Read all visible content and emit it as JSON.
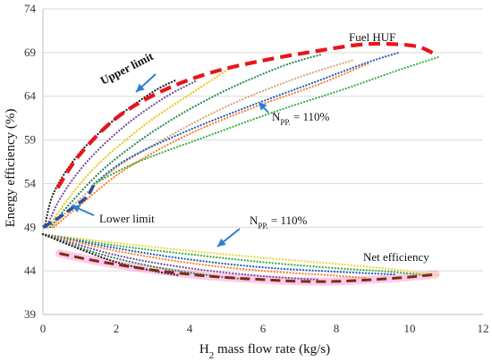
{
  "chart_data": {
    "type": "line",
    "xlabel": "H",
    "xlabel_sub": "2",
    "xlabel_rest": " mass flow rate (kg/s)",
    "ylabel": "Energy efficiency (%)",
    "xlim": [
      0,
      12
    ],
    "ylim": [
      39,
      74
    ],
    "xticks": [
      "0",
      "2",
      "4",
      "6",
      "8",
      "10",
      "12"
    ],
    "yticks": [
      "39",
      "44",
      "49",
      "54",
      "59",
      "64",
      "69",
      "74"
    ],
    "grid": "horizontal",
    "annotations": {
      "fuel_huf": "Fuel HUF",
      "upper_limit": "Upper limit",
      "lower_limit": "Lower limit",
      "net_efficiency": "Net efficiency",
      "npp_upper_n": "N",
      "npp_upper_sub": "PP.",
      "npp_upper_rest": " = 110%",
      "npp_lower_n": "N",
      "npp_lower_sub": "PP.",
      "npp_lower_rest": " = 110%"
    },
    "colors": {
      "upper_limit": "#e8141c",
      "lower_limit_huf": "#2e4fa0",
      "lower_limit_net": "#7a2e0e",
      "net_upper_envelope": "#f0d442",
      "highlight": "#ff66cc",
      "arrow": "#2f7fd0",
      "grid": "#d9d9d9"
    },
    "series_huf": [
      {
        "color": "#222222",
        "points": [
          [
            0.05,
            49
          ],
          [
            0.3,
            53
          ],
          [
            1,
            57.5
          ],
          [
            2,
            61.5
          ],
          [
            3,
            64.5
          ],
          [
            3.6,
            65.8
          ]
        ]
      },
      {
        "color": "#7b4fa0",
        "points": [
          [
            0.1,
            49
          ],
          [
            0.5,
            52.5
          ],
          [
            1.2,
            56.5
          ],
          [
            2.2,
            60.5
          ],
          [
            3.3,
            63.8
          ],
          [
            4.2,
            65.8
          ]
        ]
      },
      {
        "color": "#f0c419",
        "points": [
          [
            0.15,
            49
          ],
          [
            0.7,
            52.3
          ],
          [
            1.5,
            56.2
          ],
          [
            2.8,
            60.8
          ],
          [
            4,
            64.2
          ],
          [
            5.1,
            67.2
          ]
        ]
      },
      {
        "color": "#2e8b57",
        "points": [
          [
            0.2,
            49
          ],
          [
            0.8,
            52
          ],
          [
            1.8,
            56.2
          ],
          [
            3.2,
            60.5
          ],
          [
            4.8,
            64.3
          ],
          [
            6.5,
            67.4
          ],
          [
            7.6,
            68.8
          ]
        ]
      },
      {
        "color": "#d9a679",
        "points": [
          [
            0.25,
            49
          ],
          [
            0.9,
            51.8
          ],
          [
            2,
            55.8
          ],
          [
            3.6,
            59.8
          ],
          [
            5.2,
            63.2
          ],
          [
            7,
            66.2
          ],
          [
            8.5,
            68.2
          ]
        ]
      },
      {
        "color": "#ff7f27",
        "points": [
          [
            0.3,
            49
          ],
          [
            1,
            51.5
          ],
          [
            2.2,
            55.5
          ],
          [
            3.9,
            59.5
          ],
          [
            5.8,
            62.8
          ],
          [
            7.6,
            65.5
          ],
          [
            8.9,
            67.8
          ]
        ]
      },
      {
        "color": "#1f5fbf",
        "points": [
          [
            1.4,
            54
          ],
          [
            2.3,
            56.8
          ],
          [
            3.8,
            59.8
          ],
          [
            5.6,
            62.8
          ],
          [
            7.4,
            65.6
          ],
          [
            8.8,
            67.8
          ],
          [
            9.7,
            69
          ]
        ]
      },
      {
        "color": "#3cb043",
        "points": [
          [
            1.4,
            54
          ],
          [
            2.6,
            56.5
          ],
          [
            4.4,
            59.3
          ],
          [
            6.3,
            62.2
          ],
          [
            8.2,
            64.8
          ],
          [
            9.7,
            67
          ],
          [
            10.8,
            68.5
          ]
        ]
      }
    ],
    "series_net": [
      {
        "color": "#f0d442",
        "points": [
          [
            0,
            48.2
          ],
          [
            2,
            47.2
          ],
          [
            4,
            46.3
          ],
          [
            6,
            45.5
          ],
          [
            8,
            44.8
          ],
          [
            9.5,
            44.2
          ],
          [
            10.8,
            43.5
          ]
        ]
      },
      {
        "color": "#3cb043",
        "points": [
          [
            0,
            48.2
          ],
          [
            2,
            46.9
          ],
          [
            4,
            45.9
          ],
          [
            6,
            45
          ],
          [
            8,
            44.3
          ],
          [
            9.5,
            43.9
          ],
          [
            10.6,
            43.4
          ]
        ]
      },
      {
        "color": "#1f5fbf",
        "points": [
          [
            0,
            48.2
          ],
          [
            2,
            46.6
          ],
          [
            4,
            45.3
          ],
          [
            6,
            44.4
          ],
          [
            8,
            43.9
          ],
          [
            9.6,
            43.6
          ]
        ]
      },
      {
        "color": "#ff7f27",
        "points": [
          [
            0,
            48.2
          ],
          [
            2,
            46.3
          ],
          [
            4,
            44.9
          ],
          [
            6,
            44
          ],
          [
            7.8,
            43.5
          ],
          [
            8.8,
            43.2
          ]
        ]
      },
      {
        "color": "#7b4fa0",
        "points": [
          [
            0,
            48.2
          ],
          [
            2,
            45.8
          ],
          [
            4,
            44.3
          ],
          [
            6,
            43.4
          ],
          [
            7.5,
            43
          ]
        ]
      },
      {
        "color": "#2e8b57",
        "points": [
          [
            0,
            48.2
          ],
          [
            1.5,
            46
          ],
          [
            3,
            44.5
          ],
          [
            4.5,
            43.5
          ],
          [
            5.6,
            43
          ]
        ]
      },
      {
        "color": "#222222",
        "points": [
          [
            0,
            48.2
          ],
          [
            1,
            46.5
          ],
          [
            2,
            45
          ],
          [
            3,
            44
          ],
          [
            3.7,
            43.5
          ]
        ]
      }
    ],
    "upper_limit": [
      [
        0.4,
        53.5
      ],
      [
        1,
        57.3
      ],
      [
        2,
        61.5
      ],
      [
        3.2,
        64.5
      ],
      [
        4.5,
        66.6
      ],
      [
        6,
        68.1
      ],
      [
        7.5,
        69.2
      ],
      [
        8.6,
        69.9
      ],
      [
        9.4,
        70
      ],
      [
        10.2,
        69.7
      ],
      [
        10.7,
        68.8
      ]
    ],
    "lower_limit_huf": [
      [
        0,
        49
      ],
      [
        0.4,
        50
      ],
      [
        0.8,
        51.2
      ],
      [
        1.2,
        52.5
      ],
      [
        1.4,
        54
      ]
    ],
    "net_lower_limit": [
      [
        0.45,
        46
      ],
      [
        1.5,
        45.1
      ],
      [
        3,
        44.1
      ],
      [
        4.5,
        43.4
      ],
      [
        6,
        43
      ],
      [
        7,
        42.8
      ],
      [
        8,
        42.8
      ],
      [
        9,
        43
      ],
      [
        10,
        43.3
      ],
      [
        10.7,
        43.6
      ]
    ]
  }
}
